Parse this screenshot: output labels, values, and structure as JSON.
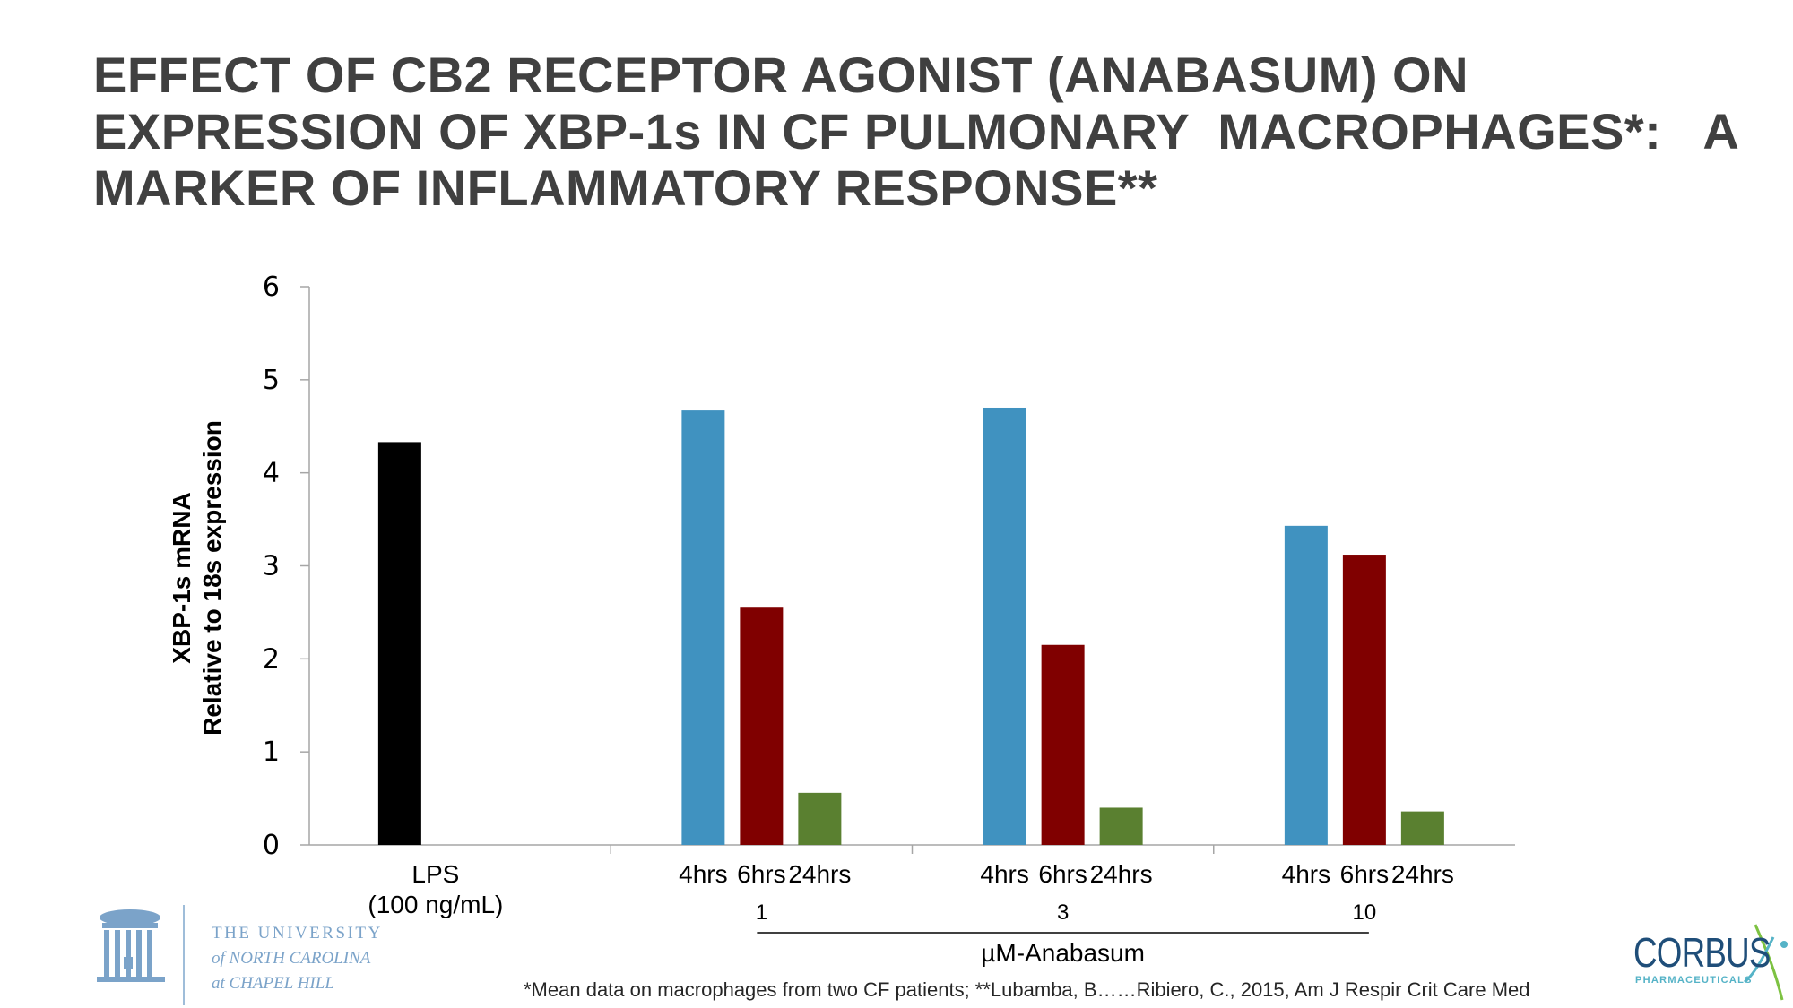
{
  "slide": {
    "title_lines": [
      "EFFECT OF CB2 RECEPTOR AGONIST (ANABASUM) ON",
      "EXPRESSION OF XBP-1s IN CF PULMONARY  MACROPHAGES*:   A",
      "MARKER OF INFLAMMATORY RESPONSE**"
    ],
    "footnote": "*Mean data on macrophages from two CF patients; **Lubamba, B……Ribiero, C., 2015, Am J Respir Crit Care Med"
  },
  "logos": {
    "unc": [
      "THE UNIVERSITY",
      "of NORTH CAROLINA",
      "at CHAPEL HILL"
    ],
    "unc_color": "#7ba3c9",
    "corbus": "CORBUS",
    "corbus_sub": "PHARMACEUTICALS",
    "corbus_color": "#1f4e79"
  },
  "chart_data": {
    "type": "bar",
    "ylabel": [
      "XBP-1s mRNA",
      "Relative to 18s expression"
    ],
    "ylim": [
      0,
      6
    ],
    "yticks": [
      0,
      1,
      2,
      3,
      4,
      5,
      6
    ],
    "grid": false,
    "groups": [
      {
        "label": [
          "LPS",
          "(100 ng/mL)"
        ],
        "bars": [
          {
            "label": "",
            "value": 4.33,
            "color": "#000000"
          }
        ]
      },
      {
        "label": [
          "1"
        ],
        "bars": [
          {
            "label": "4hrs",
            "value": 4.67,
            "color": "#4092c0"
          },
          {
            "label": "6hrs",
            "value": 2.55,
            "color": "#800000"
          },
          {
            "label": "24hrs",
            "value": 0.56,
            "color": "#5a8030"
          }
        ]
      },
      {
        "label": [
          "3"
        ],
        "bars": [
          {
            "label": "4hrs",
            "value": 4.7,
            "color": "#4092c0"
          },
          {
            "label": "6hrs",
            "value": 2.15,
            "color": "#800000"
          },
          {
            "label": "24hrs",
            "value": 0.4,
            "color": "#5a8030"
          }
        ]
      },
      {
        "label": [
          "10"
        ],
        "bars": [
          {
            "label": "4hrs",
            "value": 3.43,
            "color": "#4092c0"
          },
          {
            "label": "6hrs",
            "value": 3.12,
            "color": "#800000"
          },
          {
            "label": "24hrs",
            "value": 0.36,
            "color": "#5a8030"
          }
        ]
      }
    ],
    "group_axis_label": "µM-Anabasum"
  }
}
